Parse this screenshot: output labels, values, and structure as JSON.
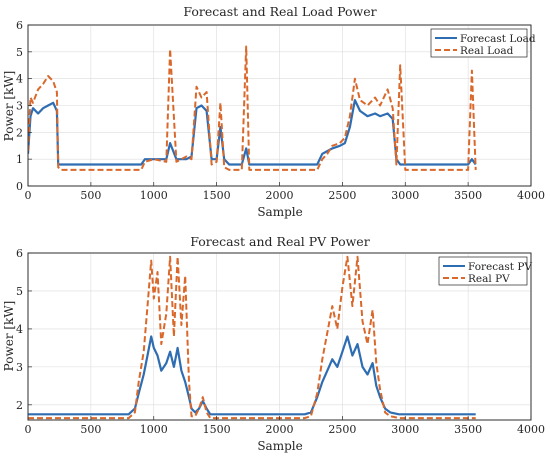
{
  "chart_data": [
    {
      "type": "line",
      "title": "Forecast and Real Load Power",
      "xlabel": "Sample",
      "ylabel": "Power [kW]",
      "xlim": [
        0,
        4000
      ],
      "ylim": [
        0,
        6
      ],
      "xticks": [
        0,
        500,
        1000,
        1500,
        2000,
        2500,
        3000,
        3500,
        4000
      ],
      "yticks": [
        0,
        1,
        2,
        3,
        4,
        5,
        6
      ],
      "grid": true,
      "legend": "top-right",
      "series": [
        {
          "name": "Forecast Load",
          "color": "#2f6db3",
          "style": "solid",
          "x": [
            0,
            20,
            40,
            80,
            120,
            160,
            200,
            230,
            240,
            260,
            900,
            930,
            1000,
            1100,
            1130,
            1180,
            1260,
            1300,
            1340,
            1380,
            1420,
            1460,
            1500,
            1530,
            1560,
            1600,
            1700,
            1735,
            1760,
            2300,
            2340,
            2380,
            2420,
            2480,
            2520,
            2560,
            2600,
            2640,
            2700,
            2760,
            2800,
            2860,
            2900,
            2930,
            2960,
            3000,
            3500,
            3530,
            3560
          ],
          "y": [
            1.2,
            2.6,
            2.9,
            2.7,
            2.9,
            3.0,
            3.1,
            2.8,
            0.8,
            0.8,
            0.8,
            1.0,
            1.0,
            1.0,
            1.6,
            1.0,
            1.0,
            1.1,
            2.9,
            3.0,
            2.8,
            1.0,
            1.0,
            2.2,
            1.0,
            0.8,
            0.8,
            1.4,
            0.8,
            0.8,
            1.2,
            1.3,
            1.4,
            1.5,
            1.6,
            2.2,
            3.2,
            2.8,
            2.6,
            2.7,
            2.6,
            2.7,
            2.5,
            1.0,
            0.8,
            0.8,
            0.8,
            1.0,
            0.8
          ]
        },
        {
          "name": "Real Load",
          "color": "#d9682a",
          "style": "dashed",
          "x": [
            0,
            20,
            40,
            80,
            120,
            160,
            200,
            230,
            240,
            260,
            900,
            930,
            1000,
            1100,
            1130,
            1180,
            1260,
            1300,
            1340,
            1380,
            1420,
            1460,
            1500,
            1530,
            1560,
            1600,
            1700,
            1735,
            1760,
            2300,
            2340,
            2380,
            2420,
            2480,
            2520,
            2560,
            2600,
            2640,
            2700,
            2760,
            2800,
            2860,
            2900,
            2930,
            2960,
            3000,
            3500,
            3530,
            3560
          ],
          "y": [
            1.3,
            3.3,
            3.1,
            3.6,
            3.8,
            4.1,
            3.9,
            3.5,
            0.7,
            0.6,
            0.6,
            0.9,
            1.0,
            0.9,
            5.1,
            0.9,
            1.1,
            1.0,
            3.7,
            3.3,
            3.5,
            0.8,
            0.9,
            3.1,
            0.7,
            0.6,
            0.6,
            5.2,
            0.6,
            0.6,
            1.0,
            1.2,
            1.5,
            1.6,
            1.8,
            2.6,
            4.0,
            3.2,
            3.0,
            3.3,
            3.0,
            3.6,
            2.9,
            0.8,
            4.5,
            0.6,
            0.6,
            4.3,
            0.6
          ]
        }
      ]
    },
    {
      "type": "line",
      "title": "Forecast and Real PV Power",
      "xlabel": "Sample",
      "ylabel": "Power [kW]",
      "xlim": [
        0,
        4000
      ],
      "ylim": [
        1.6,
        6
      ],
      "xticks": [
        0,
        500,
        1000,
        1500,
        2000,
        2500,
        3000,
        3500,
        4000
      ],
      "yticks": [
        2,
        3,
        4,
        5,
        6
      ],
      "grid": true,
      "legend": "top-right",
      "series": [
        {
          "name": "Forecast PV",
          "color": "#2f6db3",
          "style": "solid",
          "x": [
            0,
            800,
            850,
            880,
            920,
            950,
            980,
            1000,
            1030,
            1060,
            1100,
            1130,
            1160,
            1190,
            1220,
            1250,
            1280,
            1300,
            1330,
            1360,
            1390,
            1420,
            1450,
            1480,
            1600,
            2200,
            2250,
            2300,
            2340,
            2380,
            2420,
            2460,
            2500,
            2540,
            2580,
            2620,
            2660,
            2700,
            2740,
            2770,
            2800,
            2840,
            2880,
            2950,
            3560
          ],
          "y": [
            1.75,
            1.75,
            1.9,
            2.3,
            2.8,
            3.3,
            3.8,
            3.5,
            3.3,
            2.9,
            3.1,
            3.4,
            3.0,
            3.5,
            2.9,
            2.6,
            2.2,
            1.9,
            1.8,
            1.9,
            2.1,
            1.9,
            1.75,
            1.75,
            1.75,
            1.75,
            1.8,
            2.2,
            2.6,
            2.9,
            3.2,
            3.0,
            3.4,
            3.8,
            3.3,
            3.6,
            3.0,
            2.8,
            3.1,
            2.5,
            2.2,
            1.9,
            1.8,
            1.75,
            1.75
          ]
        },
        {
          "name": "Real PV",
          "color": "#d9682a",
          "style": "dashed",
          "x": [
            0,
            800,
            850,
            880,
            920,
            950,
            980,
            1000,
            1030,
            1060,
            1100,
            1130,
            1160,
            1190,
            1220,
            1250,
            1280,
            1300,
            1330,
            1360,
            1390,
            1420,
            1450,
            1480,
            1600,
            2200,
            2250,
            2300,
            2340,
            2380,
            2420,
            2460,
            2500,
            2540,
            2580,
            2620,
            2660,
            2700,
            2740,
            2770,
            2800,
            2840,
            2880,
            2950,
            3560
          ],
          "y": [
            1.65,
            1.65,
            1.8,
            2.6,
            3.4,
            4.6,
            5.8,
            4.8,
            5.5,
            3.6,
            4.4,
            5.9,
            3.8,
            5.9,
            4.1,
            5.4,
            2.6,
            1.7,
            1.7,
            1.9,
            2.2,
            1.8,
            1.65,
            1.65,
            1.65,
            1.65,
            1.7,
            2.3,
            3.2,
            3.9,
            4.6,
            4.0,
            5.1,
            5.9,
            4.6,
            5.9,
            4.2,
            3.6,
            4.5,
            3.1,
            2.4,
            1.8,
            1.7,
            1.65,
            1.65
          ]
        }
      ]
    }
  ]
}
